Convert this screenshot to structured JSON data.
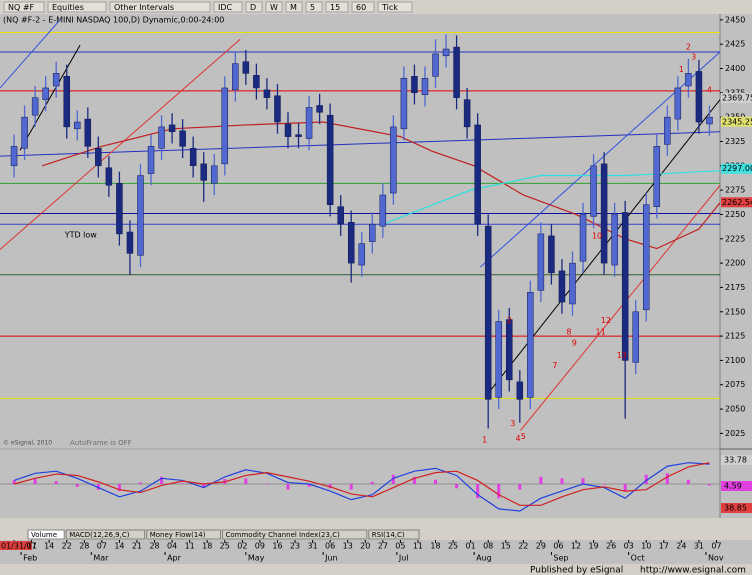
{
  "toolbar": [
    "NQ #F",
    "Equities",
    "Other Intervals",
    "IDC",
    "D",
    "W",
    "M",
    "5",
    "15",
    "60",
    "Tick"
  ],
  "chart_data": {
    "type": "candlestick",
    "title": "(NQ #F-2 - E-MINI NASDAQ 100,D) Dynamic,0:00-24:00",
    "x": [
      0,
      3,
      6,
      9,
      12,
      15,
      18,
      21,
      24,
      27,
      30,
      33,
      36,
      39,
      42,
      45,
      48,
      51,
      54,
      57,
      60,
      63,
      66,
      69,
      72,
      75,
      78,
      81,
      84,
      87,
      90,
      93,
      96,
      99,
      102,
      105,
      108,
      111,
      114,
      117,
      120,
      123,
      126,
      129,
      132,
      135,
      138,
      141,
      144,
      147,
      150,
      153,
      156,
      159,
      162,
      165,
      168,
      171,
      174,
      177,
      180,
      183,
      186,
      189,
      192,
      195,
      198
    ],
    "open": [
      2300,
      2318,
      2352,
      2368,
      2382,
      2392,
      2338,
      2348,
      2318,
      2298,
      2282,
      2232,
      2208,
      2292,
      2318,
      2342,
      2336,
      2318,
      2302,
      2282,
      2302,
      2378,
      2407,
      2393,
      2378,
      2372,
      2343,
      2332,
      2328,
      2362,
      2352,
      2258,
      2242,
      2198,
      2222,
      2238,
      2272,
      2338,
      2392,
      2373,
      2392,
      2413,
      2422,
      2368,
      2342,
      2238,
      2062,
      2142,
      2078,
      2062,
      2172,
      2228,
      2192,
      2158,
      2202,
      2248,
      2302,
      2198,
      2252,
      2098,
      2152,
      2258,
      2322,
      2348,
      2382,
      2397,
      2343
    ],
    "high": [
      2332,
      2362,
      2382,
      2392,
      2407,
      2404,
      2357,
      2360,
      2330,
      2310,
      2294,
      2244,
      2302,
      2332,
      2352,
      2354,
      2348,
      2330,
      2314,
      2312,
      2392,
      2417,
      2419,
      2405,
      2390,
      2384,
      2355,
      2344,
      2372,
      2374,
      2364,
      2270,
      2254,
      2232,
      2252,
      2282,
      2352,
      2402,
      2404,
      2402,
      2430,
      2435,
      2434,
      2380,
      2354,
      2250,
      2152,
      2154,
      2090,
      2182,
      2242,
      2240,
      2204,
      2212,
      2262,
      2312,
      2314,
      2262,
      2264,
      2162,
      2272,
      2332,
      2362,
      2392,
      2410,
      2409,
      2362
    ],
    "low": [
      2288,
      2306,
      2340,
      2356,
      2370,
      2328,
      2326,
      2308,
      2288,
      2268,
      2218,
      2188,
      2196,
      2280,
      2306,
      2323,
      2308,
      2288,
      2263,
      2270,
      2290,
      2366,
      2383,
      2368,
      2358,
      2333,
      2318,
      2318,
      2316,
      2343,
      2248,
      2228,
      2180,
      2186,
      2210,
      2226,
      2260,
      2326,
      2363,
      2361,
      2380,
      2401,
      2358,
      2328,
      2228,
      2030,
      2050,
      2068,
      2036,
      2050,
      2160,
      2178,
      2148,
      2146,
      2190,
      2236,
      2188,
      2186,
      2040,
      2086,
      2140,
      2246,
      2310,
      2336,
      2370,
      2333,
      2331
    ],
    "close": [
      2320,
      2350,
      2370,
      2380,
      2395,
      2340,
      2345,
      2320,
      2300,
      2280,
      2230,
      2210,
      2290,
      2320,
      2340,
      2335,
      2320,
      2300,
      2285,
      2300,
      2380,
      2405,
      2395,
      2380,
      2370,
      2345,
      2330,
      2330,
      2360,
      2355,
      2260,
      2240,
      2200,
      2220,
      2240,
      2270,
      2340,
      2390,
      2375,
      2390,
      2415,
      2420,
      2370,
      2340,
      2240,
      2060,
      2140,
      2080,
      2060,
      2170,
      2230,
      2190,
      2160,
      2200,
      2250,
      2300,
      2200,
      2250,
      2100,
      2150,
      2260,
      2320,
      2350,
      2380,
      2395,
      2345,
      2350
    ],
    "up_color": "#5068d0",
    "down_color": "#1a2a80",
    "xlim": [
      -4,
      201
    ],
    "ylim": [
      2010,
      2456
    ],
    "yticks": [
      2025,
      2050,
      2075,
      2100,
      2125,
      2150,
      2175,
      2200,
      2225,
      2250,
      2275,
      2300,
      2325,
      2350,
      2375,
      2400,
      2425,
      2450
    ],
    "xticks": [
      {
        "value": 0,
        "label": "01/31/11"
      },
      {
        "value": 5,
        "label": "07"
      },
      {
        "value": 10,
        "label": "14"
      },
      {
        "value": 15,
        "label": "22"
      },
      {
        "value": 20,
        "label": "28"
      },
      {
        "value": 25,
        "label": "07"
      },
      {
        "value": 30,
        "label": "14"
      },
      {
        "value": 35,
        "label": "21"
      },
      {
        "value": 40,
        "label": "28"
      },
      {
        "value": 45,
        "label": "04"
      },
      {
        "value": 50,
        "label": "11"
      },
      {
        "value": 55,
        "label": "18"
      },
      {
        "value": 60,
        "label": "25"
      },
      {
        "value": 65,
        "label": "02"
      },
      {
        "value": 70,
        "label": "09"
      },
      {
        "value": 75,
        "label": "16"
      },
      {
        "value": 80,
        "label": "23"
      },
      {
        "value": 85,
        "label": "31"
      },
      {
        "value": 90,
        "label": "06"
      },
      {
        "value": 95,
        "label": "13"
      },
      {
        "value": 100,
        "label": "20"
      },
      {
        "value": 105,
        "label": "27"
      },
      {
        "value": 110,
        "label": "05"
      },
      {
        "value": 115,
        "label": "11"
      },
      {
        "value": 120,
        "label": "18"
      },
      {
        "value": 125,
        "label": "25"
      },
      {
        "value": 130,
        "label": "01"
      },
      {
        "value": 135,
        "label": "08"
      },
      {
        "value": 140,
        "label": "15"
      },
      {
        "value": 145,
        "label": "22"
      },
      {
        "value": 150,
        "label": "29"
      },
      {
        "value": 155,
        "label": "06"
      },
      {
        "value": 160,
        "label": "12"
      },
      {
        "value": 165,
        "label": "19"
      },
      {
        "value": 170,
        "label": "26"
      },
      {
        "value": 175,
        "label": "03"
      },
      {
        "value": 180,
        "label": "10"
      },
      {
        "value": 185,
        "label": "17"
      },
      {
        "value": 190,
        "label": "24"
      },
      {
        "value": 195,
        "label": "31"
      },
      {
        "value": 200,
        "label": "07"
      }
    ],
    "month_ticks": [
      {
        "value": 2,
        "label": "Feb"
      },
      {
        "value": 22,
        "label": "Mar"
      },
      {
        "value": 43,
        "label": "Apr"
      },
      {
        "value": 66,
        "label": "May"
      },
      {
        "value": 88,
        "label": "Jun"
      },
      {
        "value": 109,
        "label": "Jul"
      },
      {
        "value": 131,
        "label": "Aug"
      },
      {
        "value": 153,
        "label": "Sep"
      },
      {
        "value": 175,
        "label": "Oct"
      },
      {
        "value": 197,
        "label": "Nov"
      }
    ],
    "levels": [
      {
        "value": 2437,
        "color": "#e8e000"
      },
      {
        "value": 2417,
        "color": "#2030c0"
      },
      {
        "value": 2377,
        "color": "#e00000"
      },
      {
        "value": 2282,
        "color": "#30a030"
      },
      {
        "value": 2251,
        "color": "#1010a0"
      },
      {
        "value": 2240,
        "color": "#3040d0"
      },
      {
        "value": 2188,
        "color": "#306030"
      },
      {
        "value": 2125,
        "color": "#e00000"
      },
      {
        "value": 2061,
        "color": "#e8e000"
      }
    ],
    "trendlines": [
      {
        "color": "#2030c0",
        "x": [
          -4,
          201
        ],
        "y": [
          2310,
          2335
        ]
      },
      {
        "color": "#000000",
        "x": [
          1.7,
          18.8
        ],
        "y": [
          2316,
          2424
        ]
      },
      {
        "color": "#000000",
        "x": [
          135.6,
          201
        ],
        "y": [
          2069,
          2368
        ]
      },
      {
        "color": "#3050e0",
        "x": [
          132.8,
          201
        ],
        "y": [
          2196,
          2417
        ]
      },
      {
        "color": "#3050e0",
        "x": [
          -4,
          13.1
        ],
        "y": [
          2380,
          2450
        ]
      },
      {
        "color": "#e03030",
        "x": [
          -4,
          64.4
        ],
        "y": [
          2214,
          2430
        ]
      },
      {
        "color": "#e03030",
        "x": [
          144.2,
          201
        ],
        "y": [
          2028,
          2280
        ]
      }
    ],
    "moving_averages": [
      {
        "color": "#c02020",
        "x": [
          8,
          25,
          45,
          66,
          88,
          110,
          119,
          131,
          145,
          160,
          174,
          183,
          195,
          201
        ],
        "values": [
          2300,
          2320,
          2338,
          2342,
          2345,
          2330,
          2315,
          2300,
          2270,
          2250,
          2225,
          2215,
          2235,
          2262
        ]
      },
      {
        "color": "#30e0e0",
        "x": [
          105,
          130,
          150,
          175,
          201
        ],
        "values": [
          2240,
          2275,
          2290,
          2290,
          2295
        ]
      }
    ],
    "price_tags": [
      {
        "value": 2369.75,
        "color": "#d0d0d0"
      },
      {
        "value": 2345.25,
        "color": "#e0e070"
      },
      {
        "value": 2297,
        "label": "2297.00",
        "color": "#40e0e0"
      },
      {
        "value": 2262.54,
        "color": "#e04040"
      }
    ],
    "annotations": [
      {
        "text": "YTD low",
        "x": 19,
        "y": 2229,
        "color": "#000000"
      },
      {
        "text": "1",
        "x": 134,
        "y": 2018,
        "color": "#e00000"
      },
      {
        "text": "2",
        "x": 141,
        "y": 2141,
        "color": "#e00000"
      },
      {
        "text": "3",
        "x": 142,
        "y": 2035,
        "color": "#e00000"
      },
      {
        "text": "4",
        "x": 143.5,
        "y": 2020,
        "color": "#e00000"
      },
      {
        "text": "5",
        "x": 145,
        "y": 2022,
        "color": "#e00000"
      },
      {
        "text": "7",
        "x": 154,
        "y": 2095,
        "color": "#e00000"
      },
      {
        "text": "8",
        "x": 158,
        "y": 2129,
        "color": "#e00000"
      },
      {
        "text": "9",
        "x": 159.5,
        "y": 2118,
        "color": "#e00000"
      },
      {
        "text": "10",
        "x": 166,
        "y": 2228,
        "color": "#e00000"
      },
      {
        "text": "11",
        "x": 167,
        "y": 2129,
        "color": "#e00000"
      },
      {
        "text": "12",
        "x": 168.5,
        "y": 2141,
        "color": "#e00000"
      },
      {
        "text": "13",
        "x": 173,
        "y": 2105,
        "color": "#e00000"
      },
      {
        "text": "1",
        "x": 190,
        "y": 2399,
        "color": "#e00000"
      },
      {
        "text": "2",
        "x": 192,
        "y": 2422,
        "color": "#e00000"
      },
      {
        "text": "3",
        "x": 193.5,
        "y": 2412,
        "color": "#e00000"
      },
      {
        "text": "4",
        "x": 198,
        "y": 2378,
        "color": "#e00000"
      }
    ],
    "watermarks": [
      "© eSignal, 2010",
      "AutoFrame is OFF"
    ]
  },
  "indicator": {
    "type": "line",
    "ylim": [
      -45,
      45
    ],
    "x": [
      0,
      6,
      12,
      18,
      24,
      30,
      36,
      42,
      48,
      54,
      60,
      66,
      72,
      78,
      84,
      90,
      96,
      102,
      108,
      114,
      120,
      126,
      132,
      138,
      144,
      150,
      156,
      162,
      168,
      174,
      180,
      186,
      192,
      198
    ],
    "series": [
      {
        "color": "#2040e0",
        "values": [
          5,
          15,
          18,
          8,
          -5,
          -18,
          -10,
          8,
          5,
          -5,
          10,
          20,
          15,
          2,
          0,
          -10,
          -22,
          -15,
          8,
          18,
          22,
          12,
          -15,
          -35,
          -38,
          -20,
          -10,
          0,
          -5,
          -20,
          5,
          25,
          30,
          28
        ]
      },
      {
        "color": "#d02020",
        "values": [
          0,
          8,
          14,
          12,
          3,
          -8,
          -12,
          -2,
          4,
          0,
          3,
          12,
          16,
          10,
          4,
          -4,
          -14,
          -18,
          -5,
          8,
          16,
          18,
          5,
          -15,
          -30,
          -30,
          -18,
          -8,
          -4,
          -10,
          -8,
          10,
          24,
          30
        ]
      }
    ],
    "histogram": {
      "color": "#e040e0",
      "values": [
        5,
        7,
        4,
        -4,
        -8,
        -10,
        2,
        10,
        1,
        -5,
        7,
        8,
        -1,
        -8,
        -4,
        -6,
        -8,
        3,
        13,
        10,
        6,
        -6,
        -20,
        -20,
        -8,
        10,
        8,
        8,
        -1,
        -10,
        13,
        15,
        6,
        -2
      ]
    },
    "tags": [
      33.78,
      4.59,
      38.85
    ]
  },
  "tabs": [
    "Volume",
    "MACD(12,26,9,C)",
    "Money Flow(14)",
    "Commodity Channel Index(23,C)",
    "RSI(14,C)"
  ],
  "footer": [
    "Published by eSignal",
    "http://www.esignal.com"
  ]
}
